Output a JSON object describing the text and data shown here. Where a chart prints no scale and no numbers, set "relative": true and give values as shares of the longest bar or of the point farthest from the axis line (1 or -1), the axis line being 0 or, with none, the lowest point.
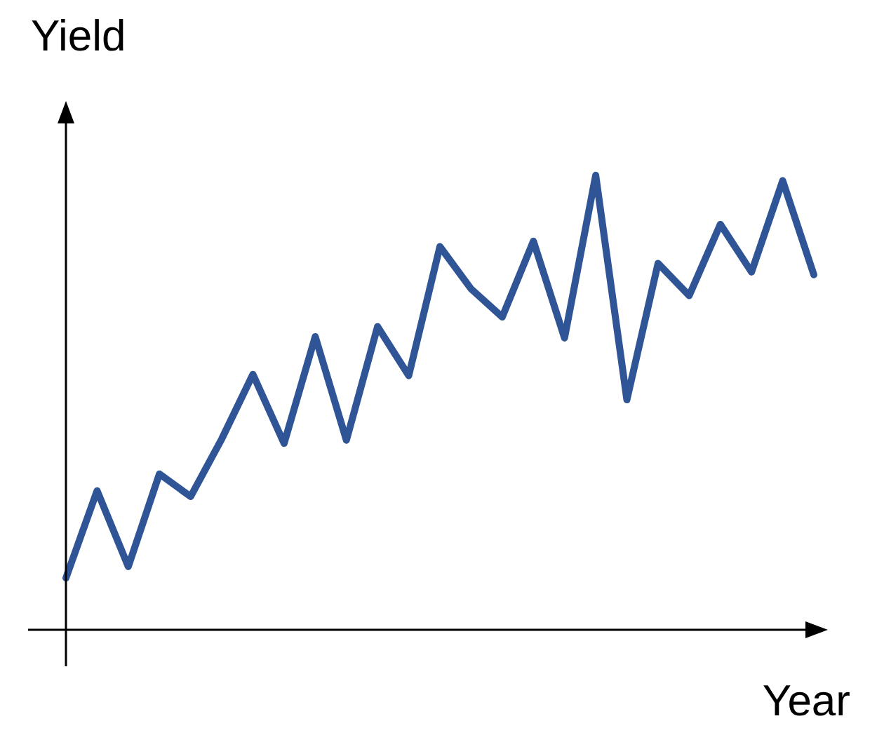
{
  "chart_data": {
    "type": "line",
    "relative": true,
    "xlabel": "Year",
    "ylabel": "Yield",
    "marker": "none",
    "line_style": "solid",
    "legend": false,
    "categories": [
      null,
      null,
      null,
      null,
      null,
      null,
      null,
      null,
      null,
      null,
      null,
      null,
      null,
      null,
      null,
      null,
      null,
      null,
      null,
      null,
      null,
      null,
      null,
      null,
      null
    ],
    "series": [
      {
        "color": "#2f5597",
        "values": [
          0.114,
          0.306,
          0.139,
          0.343,
          0.293,
          0.42,
          0.562,
          0.41,
          0.645,
          0.417,
          0.667,
          0.559,
          0.843,
          0.75,
          0.688,
          0.855,
          0.642,
          1,
          0.506,
          0.806,
          0.735,
          0.892,
          0.787,
          0.988,
          0.781
        ]
      }
    ]
  }
}
